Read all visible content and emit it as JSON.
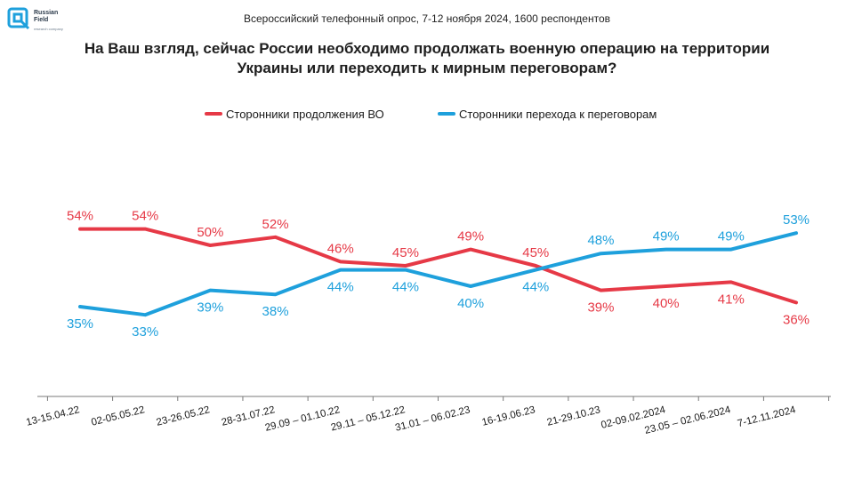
{
  "logo": {
    "name": "Russian Field",
    "tagline": "research company"
  },
  "survey_line": "Всероссийский телефонный опрос, 7-12 ноября 2024, 1600 респондентов",
  "question": "На Ваш взгляд, сейчас России необходимо продолжать военную операцию на территории Украины или переходить к мирным переговорам?",
  "colors": {
    "red": "#e63946",
    "blue": "#1ea0dc",
    "axis": "#7a7a7a"
  },
  "chart_data": {
    "type": "line",
    "title": "На Ваш взгляд, сейчас России необходимо продолжать военную операцию на территории Украины или переходить к мирным переговорам?",
    "categories": [
      "13-15.04.22",
      "02-05.05.22",
      "23-26.05.22",
      "28-31.07.22",
      "29.09 – 01.10.22",
      "29.11 – 05.12.22",
      "31.01 – 06.02.23",
      "16-19.06.23",
      "21-29.10.23",
      "02-09.02.2024",
      "23.05 – 02.06.2024",
      "7-12.11.2024"
    ],
    "series": [
      {
        "name": "Сторонники продолжения ВО",
        "color": "#e63946",
        "values": [
          54,
          54,
          50,
          52,
          46,
          45,
          49,
          45,
          39,
          40,
          41,
          36
        ]
      },
      {
        "name": "Сторонники перехода к переговорам",
        "color": "#1ea0dc",
        "values": [
          35,
          33,
          39,
          38,
          44,
          44,
          40,
          44,
          48,
          49,
          49,
          53
        ]
      }
    ],
    "value_suffix": "%",
    "legend_position": "top",
    "grid": false
  }
}
